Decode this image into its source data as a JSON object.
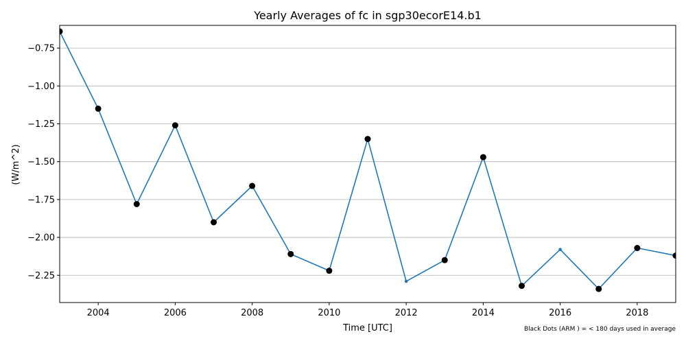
{
  "chart_data": {
    "type": "line",
    "title": "Yearly Averages of fc in sgp30ecorE14.b1",
    "xlabel": "Time [UTC]",
    "ylabel": "(W/m^2)",
    "xlim": [
      2003,
      2019
    ],
    "ylim": [
      -2.43,
      -0.6
    ],
    "x_ticks": [
      2004,
      2006,
      2008,
      2010,
      2012,
      2014,
      2016,
      2018
    ],
    "y_ticks": [
      -0.75,
      -1.0,
      -1.25,
      -1.5,
      -1.75,
      -2.0,
      -2.25
    ],
    "y_tick_labels": [
      "−0.75",
      "−1.00",
      "−1.25",
      "−1.50",
      "−1.75",
      "−2.00",
      "−2.25"
    ],
    "grid": "horizontal",
    "line_color": "#1f77b4",
    "marker_color": "#000000",
    "series": [
      {
        "x": [
          2003,
          2004,
          2005,
          2006,
          2007,
          2008,
          2009,
          2010,
          2011,
          2012,
          2013,
          2014,
          2015,
          2016,
          2017,
          2018,
          2019
        ],
        "values": [
          -0.64,
          -1.15,
          -1.78,
          -1.26,
          -1.9,
          -1.66,
          -2.11,
          -2.22,
          -1.35,
          -2.29,
          -2.15,
          -1.47,
          -2.32,
          -2.08,
          -2.34,
          -2.07,
          -2.12
        ],
        "black_dot": [
          true,
          true,
          true,
          true,
          true,
          true,
          true,
          true,
          true,
          false,
          true,
          true,
          true,
          false,
          true,
          true,
          true
        ]
      }
    ],
    "footnote": "Black Dots (ARM ) = < 180 days used in average"
  }
}
